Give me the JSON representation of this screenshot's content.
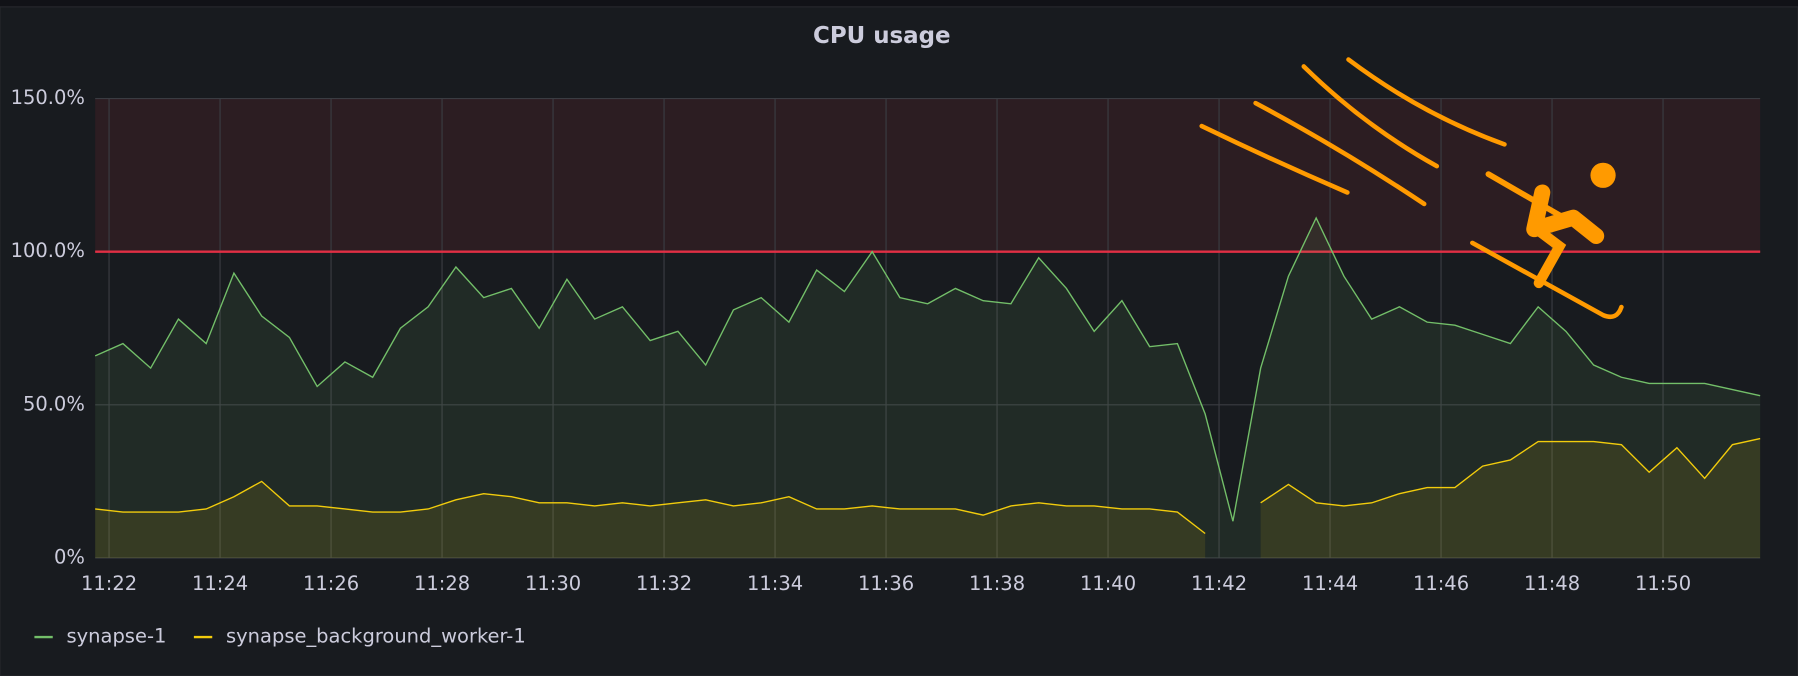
{
  "chart_data": {
    "type": "line",
    "title": "CPU usage",
    "x": [
      "11:21:45",
      "11:22:15",
      "11:22:45",
      "11:23:15",
      "11:23:45",
      "11:24:15",
      "11:24:45",
      "11:25:15",
      "11:25:45",
      "11:26:15",
      "11:26:45",
      "11:27:15",
      "11:27:45",
      "11:28:15",
      "11:28:45",
      "11:29:15",
      "11:29:45",
      "11:30:15",
      "11:30:45",
      "11:31:15",
      "11:31:45",
      "11:32:15",
      "11:32:45",
      "11:33:15",
      "11:33:45",
      "11:34:15",
      "11:34:45",
      "11:35:15",
      "11:35:45",
      "11:36:15",
      "11:36:45",
      "11:37:15",
      "11:37:45",
      "11:38:15",
      "11:38:45",
      "11:39:15",
      "11:39:45",
      "11:40:15",
      "11:40:45",
      "11:41:15",
      "11:41:45",
      "11:42:15",
      "11:42:45",
      "11:43:15",
      "11:43:45",
      "11:44:15",
      "11:44:45",
      "11:45:15",
      "11:45:45",
      "11:46:15",
      "11:46:45",
      "11:47:15",
      "11:47:45",
      "11:48:15",
      "11:48:45",
      "11:49:15",
      "11:49:45",
      "11:50:15",
      "11:50:45",
      "11:51:15",
      "11:51:45"
    ],
    "series": [
      {
        "name": "synapse-1",
        "color": "#73bf69",
        "values": [
          66,
          70,
          62,
          78,
          70,
          93,
          79,
          72,
          56,
          64,
          59,
          75,
          82,
          95,
          85,
          88,
          75,
          91,
          78,
          82,
          71,
          74,
          63,
          81,
          85,
          77,
          94,
          87,
          100,
          85,
          83,
          88,
          84,
          83,
          98,
          88,
          74,
          84,
          69,
          70,
          47,
          12,
          62,
          92,
          111,
          92,
          78,
          82,
          77,
          76,
          73,
          70,
          82,
          74,
          63,
          59,
          57,
          57,
          57,
          55,
          53
        ]
      },
      {
        "name": "synapse_background_worker-1",
        "color": "#f2cc0c",
        "values": [
          16,
          15,
          15,
          15,
          16,
          20,
          25,
          17,
          17,
          16,
          15,
          15,
          16,
          19,
          21,
          20,
          18,
          18,
          17,
          18,
          17,
          18,
          19,
          17,
          18,
          20,
          16,
          16,
          17,
          16,
          16,
          16,
          14,
          17,
          18,
          17,
          17,
          16,
          16,
          15,
          8,
          null,
          18,
          24,
          18,
          17,
          18,
          21,
          23,
          23,
          30,
          32,
          38,
          38,
          38,
          37,
          28,
          36,
          26,
          37,
          39
        ]
      }
    ],
    "xlim": [
      "11:21:45",
      "11:51:45"
    ],
    "xticks": [
      {
        "value": "11:22:00",
        "label": "11:22"
      },
      {
        "value": "11:24:00",
        "label": "11:24"
      },
      {
        "value": "11:26:00",
        "label": "11:26"
      },
      {
        "value": "11:28:00",
        "label": "11:28"
      },
      {
        "value": "11:30:00",
        "label": "11:30"
      },
      {
        "value": "11:32:00",
        "label": "11:32"
      },
      {
        "value": "11:34:00",
        "label": "11:34"
      },
      {
        "value": "11:36:00",
        "label": "11:36"
      },
      {
        "value": "11:38:00",
        "label": "11:38"
      },
      {
        "value": "11:40:00",
        "label": "11:40"
      },
      {
        "value": "11:42:00",
        "label": "11:42"
      },
      {
        "value": "11:44:00",
        "label": "11:44"
      },
      {
        "value": "11:46:00",
        "label": "11:46"
      },
      {
        "value": "11:48:00",
        "label": "11:48"
      },
      {
        "value": "11:50:00",
        "label": "11:50"
      }
    ],
    "ylim": [
      0,
      150
    ],
    "yticks": [
      {
        "value": 0,
        "label": "0%"
      },
      {
        "value": 50,
        "label": "50.0%"
      },
      {
        "value": 100,
        "label": "100.0%"
      },
      {
        "value": 150,
        "label": "150.0%"
      }
    ],
    "threshold": 100,
    "threshold_color": "#e02f44",
    "grid": true,
    "legend": "bottom-left"
  }
}
